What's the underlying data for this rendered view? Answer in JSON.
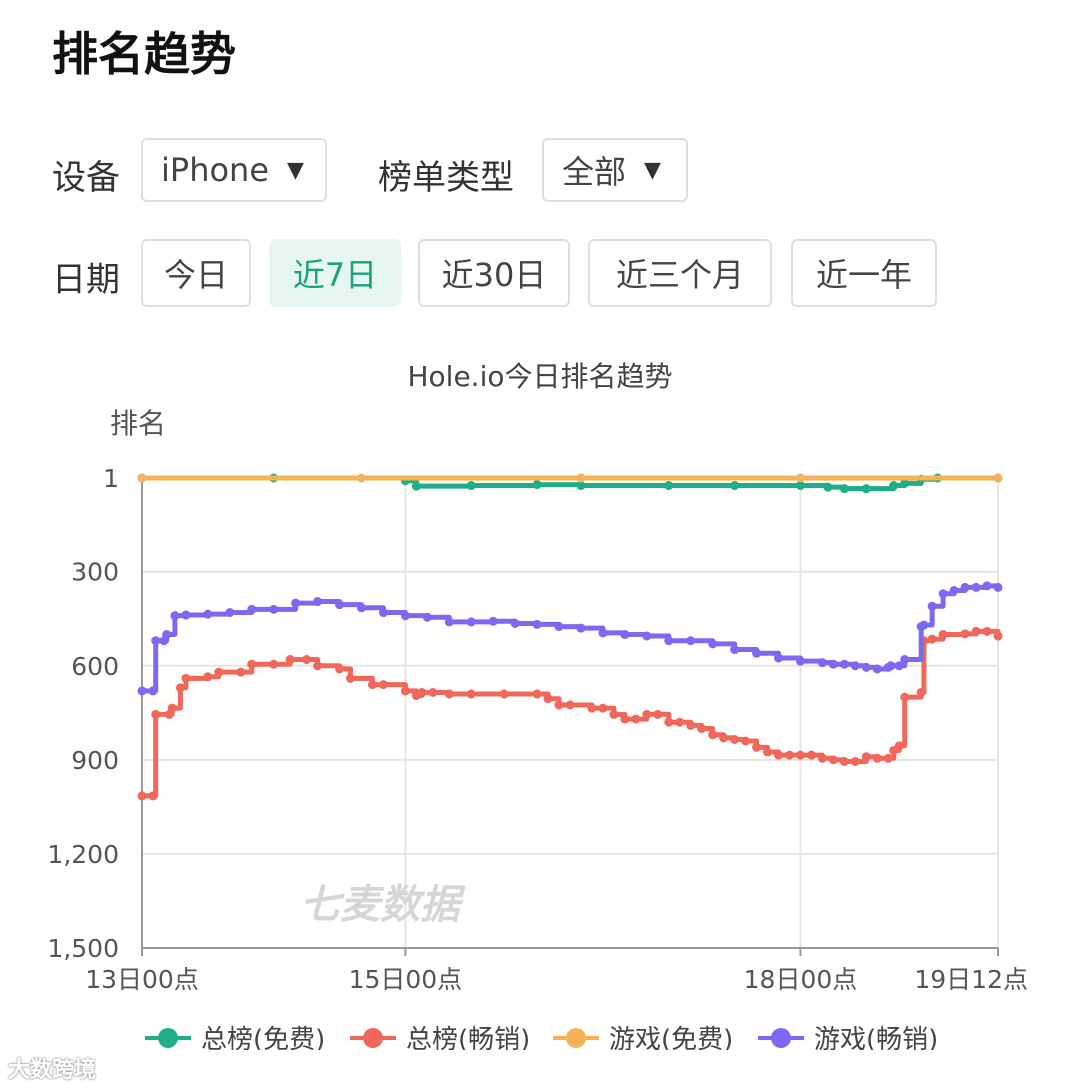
{
  "header": {
    "title": "排名趋势"
  },
  "filters": {
    "device_label": "设备",
    "device_value": "iPhone",
    "list_type_label": "榜单类型",
    "list_type_value": "全部",
    "date_label": "日期",
    "date_options": [
      "今日",
      "近7日",
      "近30日",
      "近三个月",
      "近一年"
    ],
    "date_selected": "近7日"
  },
  "watermarks": {
    "chart": "七麦数据",
    "corner": "大数跨境"
  },
  "icons": {
    "dropdown": "caret-down-icon"
  },
  "colors": {
    "accent": "#1aa37a",
    "grid": "#e6e6e6",
    "axis_text": "#555555"
  },
  "chart_data": {
    "type": "line",
    "title": "Hole.io今日排名趋势",
    "ylabel": "排名",
    "xlabel": "",
    "y_inverted": true,
    "ylim": [
      1,
      1500
    ],
    "yticks": [
      1,
      300,
      600,
      900,
      1200,
      1500
    ],
    "ytick_labels": [
      "1",
      "300",
      "600",
      "900",
      "1,200",
      "1,500"
    ],
    "xlim": [
      0,
      156
    ],
    "xticks": [
      0,
      48,
      120,
      156
    ],
    "xtick_labels": [
      "13日00点",
      "15日00点",
      "18日00点",
      "19日12点"
    ],
    "x_unit": "hours since 13日00点",
    "grid": true,
    "legend_position": "bottom",
    "series": [
      {
        "name": "总榜(免费)",
        "color": "#1fae86",
        "x": [
          0,
          24,
          48,
          50,
          60,
          72,
          80,
          96,
          108,
          120,
          125,
          128,
          132,
          137,
          139,
          142,
          145,
          156
        ],
        "y": [
          1,
          1,
          10,
          27,
          25,
          22,
          25,
          25,
          25,
          25,
          30,
          35,
          35,
          25,
          18,
          5,
          1,
          1
        ]
      },
      {
        "name": "总榜(畅销)",
        "color": "#f0685c",
        "x": [
          0,
          2,
          2.5,
          5,
          5.5,
          7,
          8,
          12,
          14,
          18,
          20,
          24,
          27,
          30,
          32,
          36,
          38,
          42,
          44,
          48,
          50,
          51,
          53,
          56,
          60,
          66,
          72,
          74,
          76,
          78,
          82,
          84,
          86,
          88,
          90,
          92,
          94,
          96,
          98,
          100,
          102,
          104,
          106,
          108,
          110,
          112,
          114,
          116,
          118,
          120,
          122,
          124,
          126,
          128,
          130,
          132,
          134,
          136,
          137,
          138,
          139,
          142,
          142.5,
          144,
          146,
          150,
          152,
          154,
          156
        ],
        "y": [
          1015,
          1015,
          755,
          755,
          735,
          670,
          640,
          635,
          620,
          620,
          595,
          595,
          580,
          580,
          600,
          610,
          640,
          660,
          660,
          680,
          695,
          685,
          685,
          690,
          690,
          690,
          690,
          705,
          725,
          725,
          735,
          735,
          755,
          770,
          770,
          755,
          755,
          780,
          780,
          790,
          800,
          820,
          830,
          835,
          840,
          860,
          875,
          885,
          885,
          885,
          885,
          895,
          900,
          905,
          905,
          890,
          895,
          895,
          870,
          855,
          700,
          685,
          520,
          515,
          500,
          498,
          490,
          490,
          505
        ]
      },
      {
        "name": "游戏(免费)",
        "color": "#f5b259",
        "x": [
          0,
          40,
          80,
          120,
          156
        ],
        "y": [
          1,
          1,
          1,
          1,
          1
        ]
      },
      {
        "name": "游戏(畅销)",
        "color": "#7b6af0",
        "x": [
          0,
          2,
          2.5,
          4,
          4.5,
          6,
          8,
          12,
          16,
          20,
          24,
          28,
          32,
          36,
          40,
          44,
          48,
          52,
          56,
          60,
          64,
          68,
          72,
          76,
          80,
          84,
          88,
          92,
          96,
          100,
          104,
          108,
          112,
          116,
          120,
          124,
          126,
          128,
          130,
          132,
          134,
          136,
          136.5,
          138,
          139,
          142,
          142.5,
          144,
          146,
          148,
          150,
          152,
          154,
          156
        ],
        "y": [
          680,
          680,
          520,
          520,
          500,
          440,
          438,
          435,
          430,
          420,
          420,
          400,
          395,
          405,
          415,
          430,
          440,
          445,
          460,
          460,
          458,
          465,
          468,
          475,
          480,
          495,
          500,
          505,
          520,
          520,
          530,
          548,
          560,
          575,
          585,
          590,
          595,
          595,
          600,
          605,
          610,
          605,
          600,
          600,
          580,
          475,
          470,
          410,
          370,
          360,
          350,
          350,
          345,
          350
        ]
      }
    ]
  }
}
